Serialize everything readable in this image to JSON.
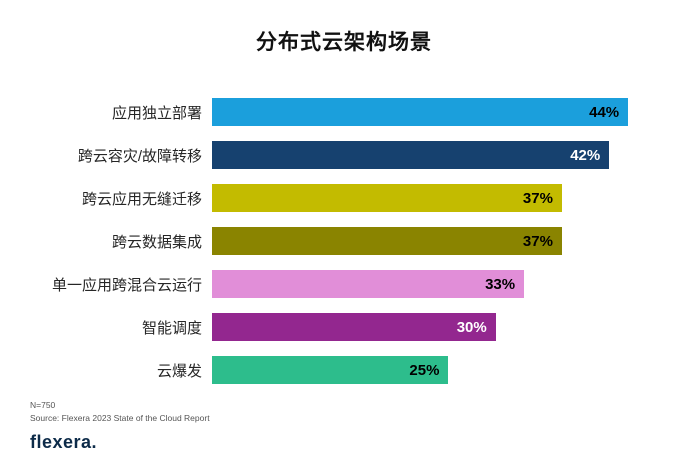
{
  "title": "分布式云架构场景",
  "footer": {
    "n_note": "N=750",
    "source": "Source: Flexera 2023 State of the Cloud Report",
    "logo": "flexera."
  },
  "chart_data": {
    "type": "bar",
    "orientation": "horizontal",
    "title": "分布式云架构场景",
    "categories": [
      "应用独立部署",
      "跨云容灾/故障转移",
      "跨云应用无缝迁移",
      "跨云数据集成",
      "单一应用跨混合云运行",
      "智能调度",
      "云爆发"
    ],
    "values": [
      44,
      42,
      37,
      37,
      33,
      30,
      25
    ],
    "value_labels": [
      "44%",
      "42%",
      "37%",
      "37%",
      "33%",
      "30%",
      "25%"
    ],
    "bar_colors": [
      "#1b9fdc",
      "#16416f",
      "#c3bb00",
      "#8a8400",
      "#e18ed8",
      "#93278f",
      "#2dbd8c"
    ],
    "value_label_colors": [
      "#000000",
      "#ffffff",
      "#000000",
      "#000000",
      "#000000",
      "#ffffff",
      "#000000"
    ],
    "xlim": [
      0,
      48
    ],
    "xlabel": "",
    "ylabel": "",
    "grid": false,
    "legend": "none",
    "source_note": "N=750; Source: Flexera 2023 State of the Cloud Report"
  }
}
